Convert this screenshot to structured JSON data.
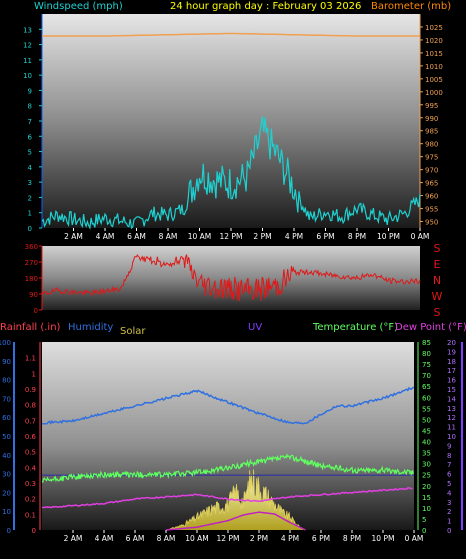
{
  "header": {
    "left_label": "Windspeed (mph)",
    "title": "24 hour graph day : February 03 2026",
    "right_label": "Barometer (mb)"
  },
  "lower_header": {
    "rainfall": "Rainfall (.in)",
    "humidity": "Humidity",
    "solar": "Solar",
    "uv": "UV",
    "temperature": "Temperature (°F)",
    "dewpoint": "Dew Point (°F)"
  },
  "colors": {
    "windspeed": "#1fd0d0",
    "barometer": "#f0a050",
    "direction": "#e01818",
    "humidity": "#3070e0",
    "rain": "#ff4050",
    "solar": "#ffff80",
    "uv": "#c020c0",
    "temperature": "#60ff60",
    "dewpoint": "#e040e0",
    "frame_blue": "#1060ff"
  },
  "chart_data": [
    {
      "type": "line",
      "name": "windspeed-barometer",
      "title": "24 hour graph day : February 03 2026",
      "x_ticks": [
        "2 AM",
        "4 AM",
        "6 AM",
        "8 AM",
        "10 AM",
        "12 PM",
        "2 PM",
        "4 PM",
        "6 PM",
        "8 PM",
        "10 PM",
        "0 AM"
      ],
      "y_left": {
        "label": "Windspeed (mph)",
        "range": [
          0,
          14
        ],
        "ticks": [
          "0",
          "1",
          "2",
          "3",
          "4",
          "5",
          "6",
          "7",
          "8",
          "9",
          "10",
          "11",
          "12",
          "13"
        ]
      },
      "y_right": {
        "label": "Barometer (mb)",
        "range": [
          947.5,
          1030
        ],
        "ticks": [
          "950",
          "955",
          "960",
          "965",
          "970",
          "975",
          "980",
          "985",
          "990",
          "995",
          "1000",
          "1005",
          "1010",
          "1015",
          "1020",
          "1025"
        ]
      },
      "series": [
        {
          "key": "windspeed",
          "axis": "left",
          "x": [
            0,
            1,
            2,
            3,
            4,
            5,
            6,
            7,
            8,
            9,
            10,
            11,
            12,
            13,
            14,
            15,
            16,
            17,
            18,
            19,
            20,
            21,
            22,
            23,
            24
          ],
          "values": [
            0.4,
            0.8,
            0.5,
            0.3,
            0.6,
            0.4,
            0.2,
            0.9,
            0.8,
            1.2,
            3.5,
            3.0,
            2.8,
            3.2,
            6.2,
            4.5,
            2.5,
            0.6,
            1.0,
            0.7,
            1.2,
            0.8,
            0.5,
            0.9,
            1.8
          ]
        },
        {
          "key": "barometer",
          "axis": "right",
          "x": [
            0,
            4,
            8,
            12,
            16,
            20,
            24
          ],
          "values": [
            1021.5,
            1021.5,
            1022,
            1022.5,
            1022,
            1021.5,
            1021.5
          ]
        }
      ]
    },
    {
      "type": "line",
      "name": "wind-direction",
      "y_left": {
        "range": [
          0,
          360
        ],
        "ticks": [
          "360",
          "270",
          "180",
          "90",
          "0"
        ]
      },
      "y_right": {
        "ticks": [
          "S",
          "E",
          "N",
          "W",
          "S"
        ]
      },
      "series": [
        {
          "key": "direction",
          "x": [
            0,
            1,
            2,
            3,
            4,
            5,
            6,
            7,
            8,
            9,
            10,
            11,
            12,
            13,
            14,
            15,
            16,
            17,
            18,
            19,
            20,
            21,
            22,
            23,
            24
          ],
          "values": [
            90,
            110,
            100,
            95,
            105,
            120,
            300,
            270,
            250,
            280,
            150,
            130,
            120,
            110,
            120,
            140,
            210,
            215,
            200,
            190,
            180,
            200,
            165,
            160,
            160
          ]
        }
      ]
    },
    {
      "type": "line",
      "name": "environment",
      "x_ticks": [
        "2 AM",
        "4 AM",
        "6 AM",
        "8 AM",
        "10 AM",
        "12 PM",
        "2 PM",
        "4 PM",
        "6 PM",
        "8 PM",
        "10 PM",
        "0 AM"
      ],
      "y_rain": {
        "label": "Rainfall (.in)",
        "range": [
          0,
          1.2
        ],
        "ticks": [
          "0",
          "0.1",
          "0.2",
          "0.3",
          "0.4",
          "0.5",
          "0.6",
          "0.7",
          "0.8",
          "0.9",
          "1",
          "1.1"
        ]
      },
      "y_humidity": {
        "label": "Humidity",
        "range": [
          0,
          100
        ],
        "ticks": [
          "0",
          "10",
          "20",
          "30",
          "40",
          "50",
          "60",
          "70",
          "80",
          "90",
          "100"
        ]
      },
      "y_temperature": {
        "label": "Temperature (°F)",
        "range": [
          0,
          85
        ],
        "ticks": [
          "0",
          "5",
          "10",
          "15",
          "20",
          "25",
          "30",
          "35",
          "40",
          "45",
          "50",
          "55",
          "60",
          "65",
          "70",
          "75",
          "80",
          "85"
        ]
      },
      "y_uv": {
        "label": "UV",
        "range": [
          0,
          20
        ],
        "ticks": [
          "0",
          "1",
          "2",
          "3",
          "4",
          "5",
          "6",
          "7",
          "8",
          "9",
          "10",
          "11",
          "12",
          "13",
          "14",
          "15",
          "16",
          "17",
          "18",
          "19",
          "20"
        ]
      },
      "series": [
        {
          "key": "humidity",
          "axis": "humidity",
          "x": [
            0,
            2,
            4,
            6,
            8,
            10,
            12,
            14,
            16,
            17,
            19,
            20,
            22,
            24
          ],
          "values": [
            57,
            58,
            62,
            66,
            70,
            74,
            68,
            62,
            57,
            57,
            66,
            66,
            70,
            76
          ]
        },
        {
          "key": "temperature",
          "axis": "temperature",
          "x": [
            0,
            2,
            4,
            6,
            8,
            10,
            12,
            14,
            16,
            18,
            20,
            22,
            24
          ],
          "values": [
            22,
            24,
            25,
            25,
            25,
            26,
            28,
            31,
            33,
            29,
            27,
            27,
            26
          ]
        },
        {
          "key": "dewpoint",
          "axis": "temperature",
          "x": [
            0,
            2,
            4,
            6,
            8,
            10,
            12,
            14,
            16,
            18,
            20,
            22,
            24
          ],
          "values": [
            10,
            11,
            12,
            14,
            15,
            16,
            14,
            13,
            15,
            16,
            17,
            18,
            19
          ]
        },
        {
          "key": "solar",
          "axis": "uv",
          "x": [
            8,
            9,
            10,
            11,
            12,
            12.5,
            13,
            13.5,
            14,
            14.5,
            15,
            15.5,
            16,
            16.5,
            17
          ],
          "values": [
            0,
            0.5,
            1.5,
            2.5,
            3,
            4.5,
            3.2,
            6,
            5,
            4,
            3,
            2,
            1.5,
            0.5,
            0
          ]
        },
        {
          "key": "uv",
          "axis": "uv",
          "x": [
            8,
            10,
            12,
            13,
            14,
            15,
            16,
            17
          ],
          "values": [
            0,
            0.3,
            1,
            1.6,
            1.9,
            1.7,
            0.8,
            0
          ]
        },
        {
          "key": "rain_threshold",
          "axis": "rain",
          "x": [
            0,
            24
          ],
          "values": [
            0.35,
            0.35
          ]
        }
      ]
    }
  ]
}
